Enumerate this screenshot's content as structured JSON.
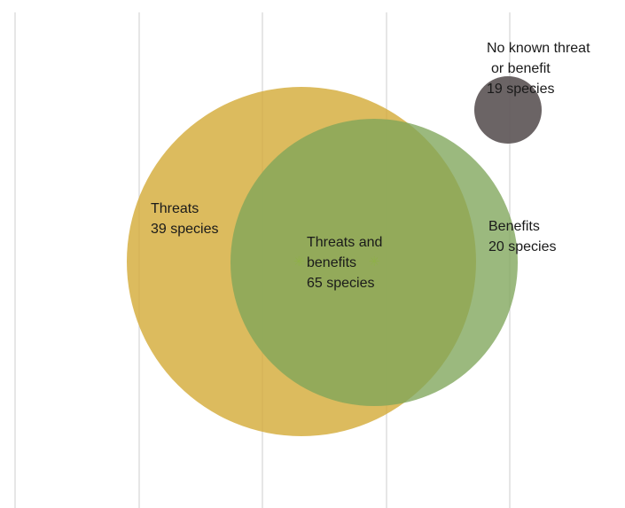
{
  "diagram": {
    "type": "venn",
    "sets": {
      "threats_only": {
        "line1": "Threats",
        "line2": "39 species",
        "count": 39,
        "color": "#D4AC3B"
      },
      "overlap": {
        "line1": "Threats and",
        "line2": "benefits",
        "line3": "65 species",
        "count": 65,
        "color": "#7D9F45"
      },
      "benefits_only": {
        "line1": "Benefits",
        "line2": "20 species",
        "count": 20,
        "color": "#7FA55A"
      },
      "none": {
        "line1": "No known threat",
        "line2": "or benefit",
        "line3": "19 species",
        "count": 19,
        "color": "#5E5758"
      }
    },
    "marker_color": "#8FB04A",
    "gridline_color": "#D9D9D9",
    "gridlines": true
  }
}
